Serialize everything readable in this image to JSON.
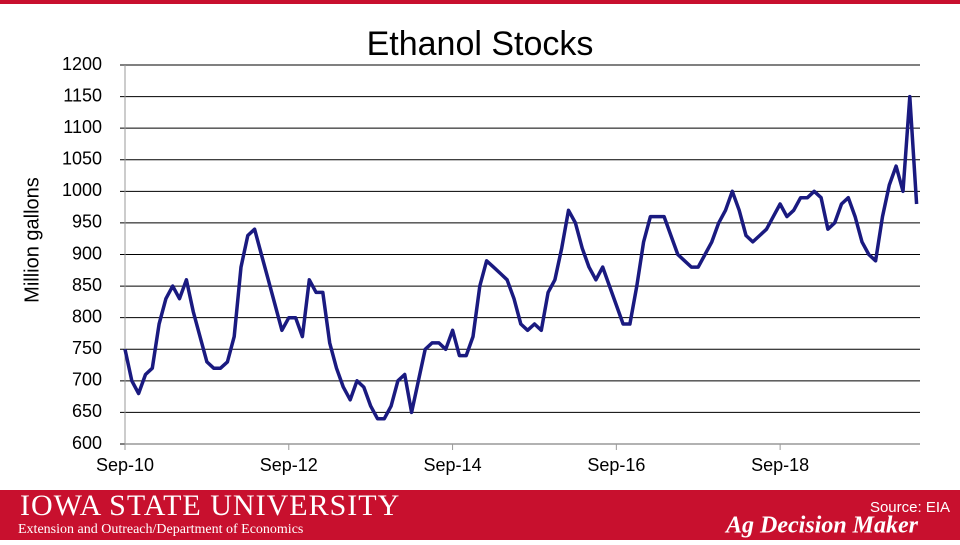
{
  "chart_data": {
    "type": "line",
    "title": "Ethanol Stocks",
    "y_label": "Million gallons",
    "x": [
      2010.667,
      2010.75,
      2010.833,
      2010.917,
      2011.0,
      2011.083,
      2011.167,
      2011.25,
      2011.333,
      2011.417,
      2011.5,
      2011.583,
      2011.667,
      2011.75,
      2011.833,
      2011.917,
      2012.0,
      2012.083,
      2012.167,
      2012.25,
      2012.333,
      2012.417,
      2012.5,
      2012.583,
      2012.667,
      2012.75,
      2012.833,
      2012.917,
      2013.0,
      2013.083,
      2013.167,
      2013.25,
      2013.333,
      2013.417,
      2013.5,
      2013.583,
      2013.667,
      2013.75,
      2013.833,
      2013.917,
      2014.0,
      2014.083,
      2014.167,
      2014.25,
      2014.333,
      2014.417,
      2014.5,
      2014.583,
      2014.667,
      2014.75,
      2014.833,
      2014.917,
      2015.0,
      2015.083,
      2015.167,
      2015.25,
      2015.333,
      2015.417,
      2015.5,
      2015.583,
      2015.667,
      2015.75,
      2015.833,
      2015.917,
      2016.0,
      2016.083,
      2016.167,
      2016.25,
      2016.333,
      2016.417,
      2016.5,
      2016.583,
      2016.667,
      2016.75,
      2016.833,
      2016.917,
      2017.0,
      2017.083,
      2017.167,
      2017.25,
      2017.333,
      2017.417,
      2017.5,
      2017.583,
      2017.667,
      2017.75,
      2017.833,
      2017.917,
      2018.0,
      2018.083,
      2018.167,
      2018.25,
      2018.333,
      2018.417,
      2018.5,
      2018.583,
      2018.667,
      2018.75,
      2018.833,
      2018.917,
      2019.0,
      2019.083,
      2019.167,
      2019.25,
      2019.333,
      2019.417,
      2019.5,
      2019.583,
      2019.667,
      2019.75,
      2019.833,
      2019.917,
      2020.0,
      2020.083,
      2020.167,
      2020.25,
      2020.333
    ],
    "series": [
      {
        "color": "#1a1a80",
        "values": [
          750,
          700,
          680,
          710,
          720,
          790,
          830,
          850,
          830,
          860,
          810,
          770,
          730,
          720,
          720,
          730,
          770,
          880,
          930,
          940,
          900,
          860,
          820,
          780,
          800,
          800,
          770,
          860,
          840,
          840,
          760,
          720,
          690,
          670,
          700,
          690,
          660,
          640,
          640,
          660,
          700,
          710,
          650,
          700,
          750,
          760,
          760,
          750,
          780,
          740,
          740,
          770,
          850,
          890,
          880,
          870,
          860,
          830,
          790,
          780,
          790,
          780,
          840,
          860,
          910,
          970,
          950,
          910,
          880,
          860,
          880,
          850,
          820,
          790,
          790,
          850,
          920,
          960,
          960,
          960,
          930,
          900,
          890,
          880,
          880,
          900,
          920,
          950,
          970,
          1000,
          970,
          930,
          920,
          930,
          940,
          960,
          980,
          960,
          970,
          990,
          990,
          1000,
          990,
          940,
          950,
          980,
          990,
          960,
          920,
          900,
          890,
          960,
          1010,
          1040,
          1000,
          1150,
          980
        ]
      }
    ],
    "xlim": [
      2010.667,
      2020.375
    ],
    "xticks": [
      {
        "value": 2010.667,
        "label": "Sep-10"
      },
      {
        "value": 2012.667,
        "label": "Sep-12"
      },
      {
        "value": 2014.667,
        "label": "Sep-14"
      },
      {
        "value": 2016.667,
        "label": "Sep-16"
      },
      {
        "value": 2018.667,
        "label": "Sep-18"
      }
    ],
    "ylim": [
      600,
      1200
    ],
    "yticks": [
      600,
      650,
      700,
      750,
      800,
      850,
      900,
      950,
      1000,
      1050,
      1100,
      1150,
      1200
    ],
    "grid": true
  },
  "footer": {
    "university": "Iowa State University",
    "department": "Extension and Outreach/Department of Economics",
    "source": "Source: EIA",
    "brand": "Ag Decision Maker"
  }
}
